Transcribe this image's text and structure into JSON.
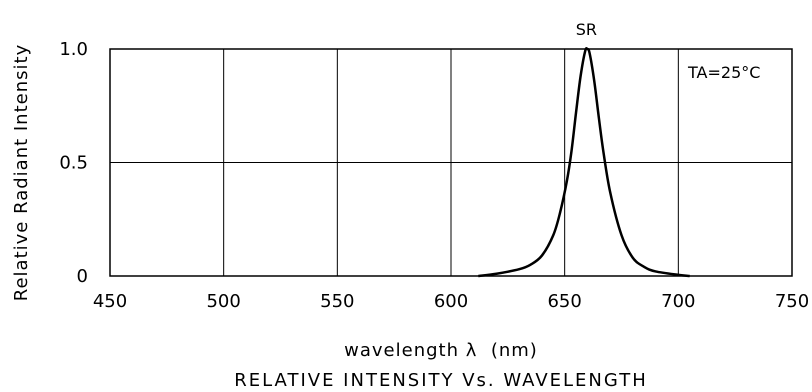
{
  "chart_data": {
    "type": "line",
    "title": "RELATIVE INTENSITY Vs. WAVELENGTH",
    "xlabel": "wavelength λ  (nm)",
    "ylabel": "Relative Radiant Intensity",
    "xlim": [
      450,
      750
    ],
    "ylim": [
      0,
      1.0
    ],
    "x_ticks": [
      "450",
      "500",
      "550",
      "600",
      "650",
      "700",
      "750"
    ],
    "y_ticks": [
      "0",
      "0.5",
      "1.0"
    ],
    "grid": true,
    "annotations": {
      "condition": "TA=25°C"
    },
    "series": [
      {
        "name": "SR",
        "x": [
          612,
          620,
          630,
          635,
          640,
          645,
          648,
          651,
          653,
          655,
          657,
          659,
          660,
          661,
          663,
          665,
          667,
          670,
          675,
          680,
          685,
          690,
          700,
          705
        ],
        "y": [
          0.0,
          0.01,
          0.03,
          0.05,
          0.09,
          0.18,
          0.28,
          0.42,
          0.55,
          0.72,
          0.88,
          0.99,
          1.0,
          0.98,
          0.86,
          0.7,
          0.55,
          0.37,
          0.18,
          0.08,
          0.04,
          0.02,
          0.005,
          0.0
        ]
      }
    ]
  }
}
